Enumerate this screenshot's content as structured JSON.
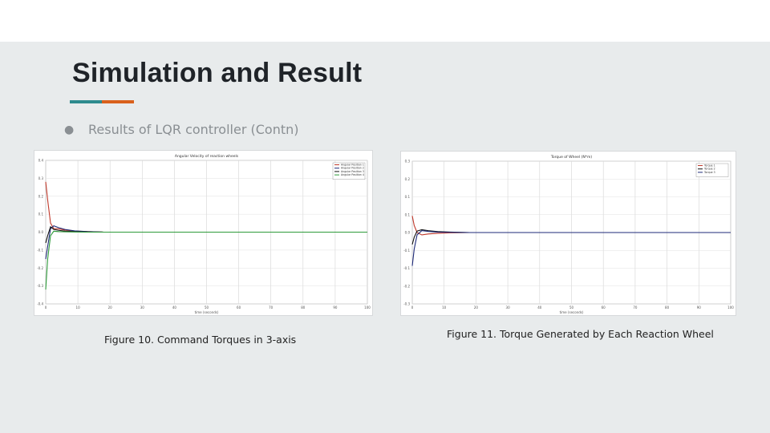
{
  "slide": {
    "title": "Simulation and Result",
    "accent_colors": [
      "#2e8b8e",
      "#d9601c"
    ],
    "background": "#e8ebec",
    "bullet": {
      "icon": "bullet-dot",
      "glyph": "●",
      "text": "Results of LQR controller (Contn)"
    }
  },
  "figures": [
    {
      "caption": "Figure 10. Command Torques in 3-axis",
      "plot_title": "Angular Velocity of reaction wheels",
      "legend": [
        "Angular Position 1",
        "Angular Position 2",
        "Angular Position 3",
        "Angular Position 4"
      ]
    },
    {
      "caption": "Figure 11. Torque Generated by Each Reaction Wheel",
      "plot_title": "Torque of Wheel (N*m)",
      "legend": [
        "Torque 1",
        "Torque 2",
        "Torque 3"
      ]
    }
  ],
  "chart_data": [
    {
      "type": "line",
      "title": "Angular Velocity of reaction wheels",
      "xlabel": "time (seconds)",
      "xlim": [
        0,
        100
      ],
      "x_ticks": [
        "0",
        "10",
        "20",
        "30",
        "40",
        "50",
        "60",
        "70",
        "80",
        "90",
        "100"
      ],
      "ylim": [
        -0.4,
        0.4
      ],
      "grid": true,
      "legend_position": "top-right",
      "series": [
        {
          "name": "Angular Position 1",
          "color": "#c0392b",
          "x": [
            0,
            0.6,
            1.5,
            2.5,
            4,
            6,
            9,
            13,
            18,
            100
          ],
          "y": [
            0.28,
            0.18,
            0.05,
            0.02,
            0.018,
            0.012,
            0.006,
            0.003,
            0.0,
            0.0
          ]
        },
        {
          "name": "Angular Position 2",
          "color": "#1e2a78",
          "x": [
            0,
            0.6,
            1.5,
            2.5,
            4,
            6,
            9,
            13,
            18,
            100
          ],
          "y": [
            -0.15,
            -0.08,
            0.02,
            0.035,
            0.025,
            0.015,
            0.007,
            0.003,
            0.0,
            0.0
          ]
        },
        {
          "name": "Angular Position 3",
          "color": "#111111",
          "x": [
            0,
            0.6,
            1.5,
            2.5,
            4,
            6,
            9,
            13,
            18,
            100
          ],
          "y": [
            -0.06,
            -0.02,
            0.03,
            0.015,
            0.01,
            0.006,
            0.003,
            0.001,
            0.0,
            0.0
          ]
        },
        {
          "name": "Angular Position 4",
          "color": "#2e9b3a",
          "x": [
            0,
            0.6,
            1.5,
            2.5,
            4,
            6,
            9,
            13,
            18,
            100
          ],
          "y": [
            -0.32,
            -0.15,
            -0.02,
            0.005,
            0.003,
            0.002,
            0.001,
            0.0,
            0.0,
            0.0
          ]
        }
      ]
    },
    {
      "type": "line",
      "title": "Torque of Wheel (N*m)",
      "xlabel": "time (seconds)",
      "xlim": [
        0,
        100
      ],
      "x_ticks": [
        "0",
        "10",
        "20",
        "30",
        "40",
        "50",
        "60",
        "70",
        "80",
        "90",
        "100"
      ],
      "ylim": [
        -0.3,
        0.3
      ],
      "grid": true,
      "legend_position": "top-right",
      "series": [
        {
          "name": "Torque 1",
          "color": "#c0392b",
          "x": [
            0,
            0.6,
            1.5,
            3,
            5,
            8,
            12,
            18,
            100
          ],
          "y": [
            0.07,
            0.03,
            0.0,
            -0.01,
            -0.006,
            -0.003,
            -0.001,
            0.0,
            0.0
          ]
        },
        {
          "name": "Torque 2",
          "color": "#111111",
          "x": [
            0,
            0.6,
            1.5,
            3,
            5,
            8,
            12,
            18,
            100
          ],
          "y": [
            -0.05,
            -0.02,
            0.006,
            0.012,
            0.008,
            0.004,
            0.002,
            0.0,
            0.0
          ]
        },
        {
          "name": "Torque 3",
          "color": "#1e2a78",
          "x": [
            0,
            0.6,
            1.5,
            3,
            5,
            8,
            12,
            18,
            100
          ],
          "y": [
            -0.14,
            -0.07,
            -0.01,
            0.008,
            0.005,
            0.002,
            0.001,
            0.0,
            0.0
          ]
        }
      ]
    }
  ]
}
